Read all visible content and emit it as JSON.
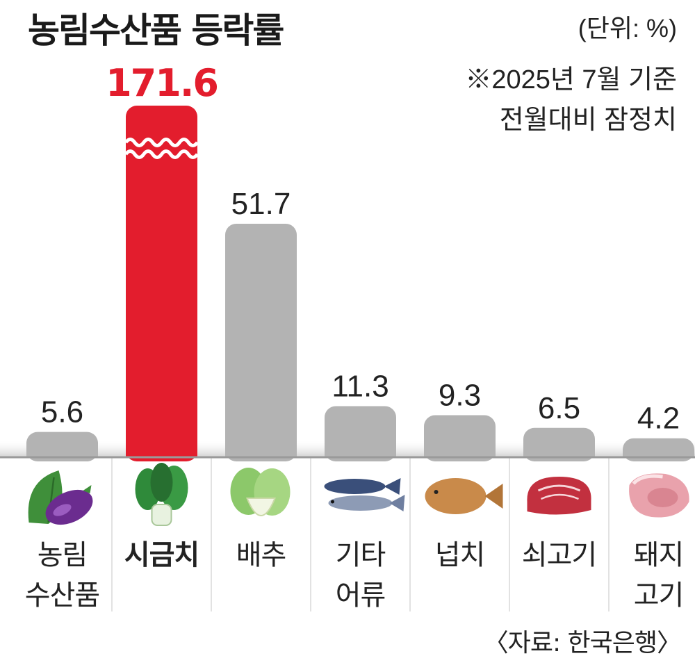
{
  "title": "농림수산품 등락률",
  "unit": "(단위: %)",
  "note": [
    "※2025년 7월 기준",
    "전월대비 잠정치"
  ],
  "source": "〈자료: 한국은행〉",
  "colors": {
    "highlight": "#e31d2d",
    "bar": "#b3b3b3",
    "baseline": "#9a9a9a"
  },
  "chart_data": {
    "type": "bar",
    "categories": [
      {
        "lines": [
          "농림",
          "수산품"
        ],
        "icon": "eggplant-leaf-icon"
      },
      {
        "lines": [
          "시금치"
        ],
        "icon": "spinach-icon"
      },
      {
        "lines": [
          "배추"
        ],
        "icon": "napa-cabbage-icon"
      },
      {
        "lines": [
          "기타",
          "어류"
        ],
        "icon": "fish-icon"
      },
      {
        "lines": [
          "넙치"
        ],
        "icon": "flatfish-icon"
      },
      {
        "lines": [
          "쇠고기"
        ],
        "icon": "beef-icon"
      },
      {
        "lines": [
          "돼지",
          "고기"
        ],
        "icon": "pork-icon"
      }
    ],
    "values": [
      5.6,
      171.6,
      51.7,
      11.3,
      9.3,
      6.5,
      4.2
    ],
    "value_labels": [
      "5.6",
      "171.6",
      "51.7",
      "11.3",
      "9.3",
      "6.5",
      "4.2"
    ],
    "highlight_index": 1,
    "axis_break_on": 1,
    "ylabel": "",
    "xlabel": "",
    "grid": false
  }
}
